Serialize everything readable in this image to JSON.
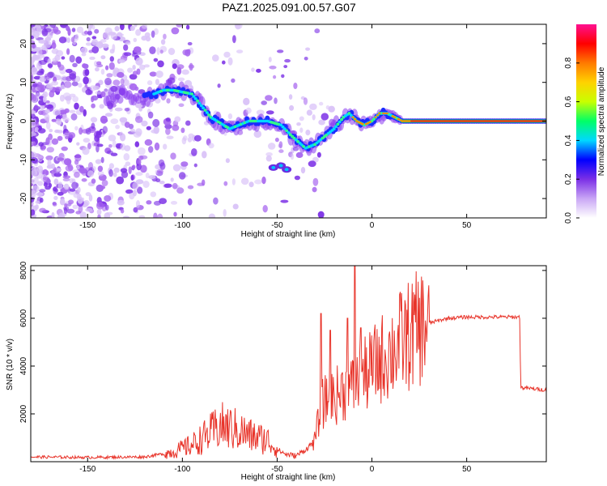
{
  "title": "PAZ1.2025.091.00.57.G07",
  "chart_data": [
    {
      "type": "heatmap",
      "xlabel": "Height of straight line (km)",
      "ylabel": "Frequency (Hz)",
      "xlim": [
        -180,
        92
      ],
      "ylim": [
        -25,
        25
      ],
      "xticks": [
        "-150",
        "-100",
        "-50",
        "0",
        "50"
      ],
      "xtick_values": [
        -150,
        -100,
        -50,
        0,
        50
      ],
      "yticks": [
        "-20",
        "-10",
        "0",
        "10",
        "20"
      ],
      "ytick_values": [
        -20,
        -10,
        0,
        10,
        20
      ],
      "colorbar": {
        "label": "Normalized spectral amplitude",
        "range": [
          0,
          1
        ],
        "ticks": [
          "0.0",
          "0.2",
          "0.4",
          "0.6",
          "0.8"
        ],
        "tick_values": [
          0.0,
          0.2,
          0.4,
          0.6,
          0.8
        ],
        "colors": [
          "#ffffff",
          "#c9a6f5",
          "#7b2fe6",
          "#0000ff",
          "#00d8ff",
          "#00ff66",
          "#c8ff00",
          "#ffd200",
          "#ff7a00",
          "#ff0000",
          "#ff1090"
        ]
      },
      "ridge": {
        "x": [
          -140,
          -130,
          -120,
          -110,
          -105,
          -95,
          -85,
          -75,
          -65,
          -55,
          -48,
          -42,
          -35,
          -30,
          -25,
          -20,
          -15,
          -12,
          -8,
          -4,
          0,
          4,
          8,
          12,
          16,
          20,
          30,
          50,
          70,
          92
        ],
        "y": [
          6,
          7,
          6,
          8,
          8,
          7,
          1,
          -2,
          0,
          0,
          -1,
          -4,
          -7,
          -6,
          -4,
          -2,
          1,
          2,
          0,
          -1,
          0,
          2,
          2,
          1,
          0,
          0,
          0,
          0,
          0,
          0
        ]
      }
    },
    {
      "type": "line",
      "xlabel": "Height of straight line (km)",
      "ylabel": "SNR (10 * v/v)",
      "xlim": [
        -180,
        92
      ],
      "ylim": [
        0,
        8200
      ],
      "xticks": [
        "-150",
        "-100",
        "-50",
        "0",
        "50"
      ],
      "xtick_values": [
        -150,
        -100,
        -50,
        0,
        50
      ],
      "yticks": [
        "2000",
        "4000",
        "6000",
        "8000"
      ],
      "ytick_values": [
        2000,
        4000,
        6000,
        8000
      ],
      "color": "#e8342a",
      "envelope": {
        "x": [
          -180,
          -150,
          -120,
          -105,
          -95,
          -85,
          -80,
          -75,
          -70,
          -65,
          -60,
          -55,
          -50,
          -45,
          -40,
          -35,
          -30,
          -27,
          -25,
          -20,
          -15,
          -10,
          -5,
          0,
          5,
          10,
          15,
          20,
          25,
          30,
          40,
          50,
          60,
          70,
          78,
          78.5,
          85,
          92
        ],
        "y": [
          200,
          180,
          200,
          400,
          700,
          1200,
          1500,
          1400,
          1300,
          1100,
          1000,
          900,
          500,
          300,
          250,
          500,
          900,
          2300,
          2500,
          2700,
          3000,
          3100,
          3500,
          3900,
          4300,
          4600,
          5000,
          5300,
          5600,
          5800,
          6000,
          6050,
          6050,
          6050,
          6050,
          3100,
          3050,
          3000
        ]
      },
      "spikes": [
        {
          "x": -27,
          "y": 6200
        },
        {
          "x": -22,
          "y": 5500
        },
        {
          "x": -13,
          "y": 6000
        },
        {
          "x": -9,
          "y": 8200
        },
        {
          "x": -6,
          "y": 5600
        }
      ]
    }
  ]
}
